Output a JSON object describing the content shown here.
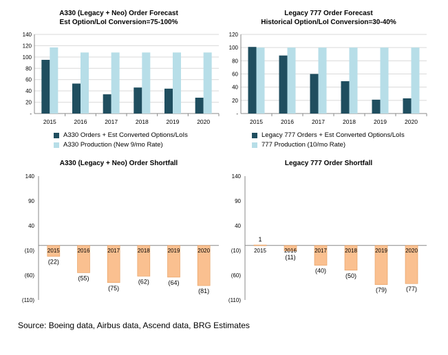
{
  "source": "Source: Boeing data, Airbus data, Ascend data, BRG Estimates",
  "colors": {
    "dark": "#1f4e5f",
    "light": "#b7dee8",
    "orange": "#fac090",
    "orange_border": "#e59b5c"
  },
  "chart_data": [
    {
      "type": "bar",
      "title": "A330 (Legacy + Neo) Order Forecast",
      "subtitle": "Est Option/LoI Conversion=75-100%",
      "categories": [
        "2015",
        "2016",
        "2017",
        "2018",
        "2019",
        "2020"
      ],
      "y_ticks": [
        "140",
        "120",
        "100",
        "80",
        "60",
        "40",
        "20",
        "-"
      ],
      "ylim": [
        0,
        140
      ],
      "series": [
        {
          "name": "A330 Orders + Est Converted Options/LoIs",
          "values": [
            95,
            53,
            34,
            46,
            44,
            28
          ]
        },
        {
          "name": "A330 Production (New 9/mo Rate)",
          "values": [
            117,
            108,
            108,
            108,
            108,
            108
          ]
        }
      ],
      "legend_position": "bottom"
    },
    {
      "type": "bar",
      "title": "Legacy 777 Order Forecast",
      "subtitle": "Historical Option/LoI Conversion=30-40%",
      "categories": [
        "2015",
        "2016",
        "2017",
        "2018",
        "2019",
        "2020"
      ],
      "y_ticks": [
        "120",
        "100",
        "80",
        "60",
        "40",
        "20",
        "-"
      ],
      "ylim": [
        0,
        120
      ],
      "series": [
        {
          "name": "Legacy 777 Orders + Est Converted Options/LoIs",
          "values": [
            101,
            88,
            60,
            49,
            21,
            23
          ]
        },
        {
          "name": "777 Production (10/mo Rate)",
          "values": [
            100,
            100,
            100,
            100,
            100,
            100
          ]
        }
      ],
      "legend_position": "bottom"
    },
    {
      "type": "bar",
      "title": "A330 (Legacy + Neo) Order Shortfall",
      "categories": [
        "2015",
        "2016",
        "2017",
        "2018",
        "2019",
        "2020"
      ],
      "y_ticks": [
        "140",
        "90",
        "40",
        "(10)",
        "(60)",
        "(110)"
      ],
      "ylim": [
        -110,
        140
      ],
      "values": [
        -22,
        -55,
        -75,
        -62,
        -64,
        -81
      ],
      "data_labels": [
        "(22)",
        "(55)",
        "(75)",
        "(62)",
        "(64)",
        "(81)"
      ]
    },
    {
      "type": "bar",
      "title": "Legacy 777 Order Shortfall",
      "categories": [
        "2015",
        "2016",
        "2017",
        "2018",
        "2019",
        "2020"
      ],
      "y_ticks": [
        "140",
        "90",
        "40",
        "(10)",
        "(60)",
        "(110)"
      ],
      "ylim": [
        -110,
        140
      ],
      "values": [
        1,
        -11,
        -40,
        -50,
        -79,
        -77
      ],
      "data_labels": [
        "1",
        "(11)",
        "(40)",
        "(50)",
        "(79)",
        "(77)"
      ]
    }
  ]
}
